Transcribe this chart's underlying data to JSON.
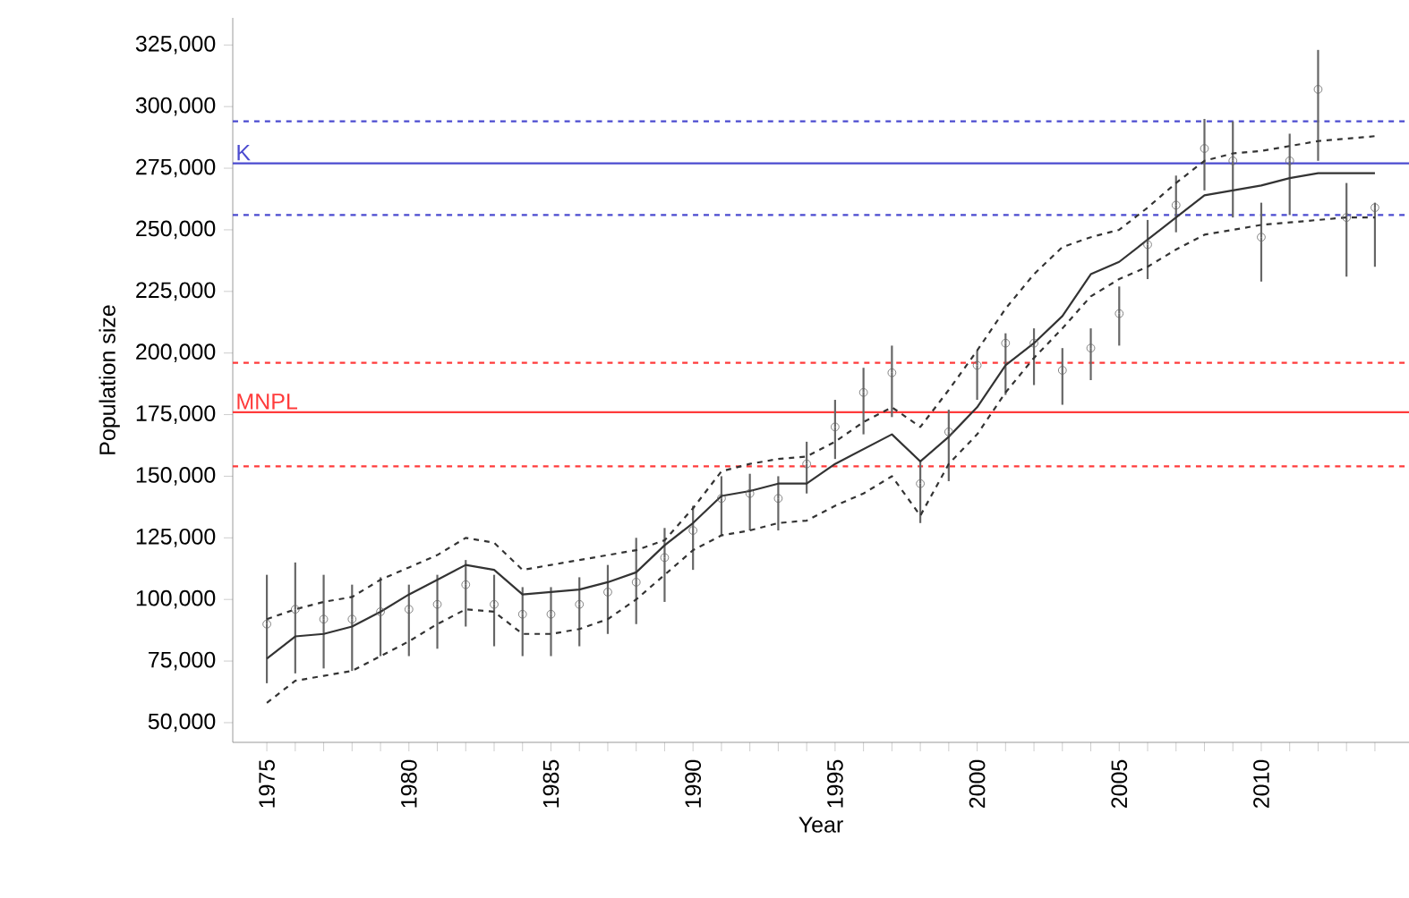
{
  "chart_data": {
    "type": "line",
    "xlabel": "Year",
    "ylabel": "Population size",
    "xlim": [
      1973.8,
      2015.2
    ],
    "ylim": [
      42000,
      336000
    ],
    "xticks": [
      1975,
      {
        "value": 1976,
        "label": null
      },
      {
        "value": 1977,
        "label": null
      },
      {
        "value": 1978,
        "label": null
      },
      {
        "value": 1979,
        "label": null
      },
      1980,
      {
        "value": 1981,
        "label": null
      },
      {
        "value": 1982,
        "label": null
      },
      {
        "value": 1983,
        "label": null
      },
      {
        "value": 1984,
        "label": null
      },
      1985,
      {
        "value": 1986,
        "label": null
      },
      {
        "value": 1987,
        "label": null
      },
      {
        "value": 1988,
        "label": null
      },
      {
        "value": 1989,
        "label": null
      },
      1990,
      {
        "value": 1991,
        "label": null
      },
      {
        "value": 1992,
        "label": null
      },
      {
        "value": 1993,
        "label": null
      },
      {
        "value": 1994,
        "label": null
      },
      1995,
      {
        "value": 1996,
        "label": null
      },
      {
        "value": 1997,
        "label": null
      },
      {
        "value": 1998,
        "label": null
      },
      {
        "value": 1999,
        "label": null
      },
      2000,
      {
        "value": 2001,
        "label": null
      },
      {
        "value": 2002,
        "label": null
      },
      {
        "value": 2003,
        "label": null
      },
      {
        "value": 2004,
        "label": null
      },
      2005,
      {
        "value": 2006,
        "label": null
      },
      {
        "value": 2007,
        "label": null
      },
      {
        "value": 2008,
        "label": null
      },
      {
        "value": 2009,
        "label": null
      },
      2010,
      {
        "value": 2011,
        "label": null
      },
      {
        "value": 2012,
        "label": null
      },
      {
        "value": 2013,
        "label": null
      },
      {
        "value": 2014,
        "label": null
      }
    ],
    "yticks": [
      {
        "value": 50000,
        "label": "50,000"
      },
      {
        "value": 75000,
        "label": "75,000"
      },
      {
        "value": 100000,
        "label": "100,000"
      },
      {
        "value": 125000,
        "label": "125,000"
      },
      {
        "value": 150000,
        "label": "150,000"
      },
      {
        "value": 175000,
        "label": "175,000"
      },
      {
        "value": 200000,
        "label": "200,000"
      },
      {
        "value": 225000,
        "label": "225,000"
      },
      {
        "value": 250000,
        "label": "250,000"
      },
      {
        "value": 275000,
        "label": "275,000"
      },
      {
        "value": 300000,
        "label": "300,000"
      },
      {
        "value": 325000,
        "label": "325,000"
      }
    ],
    "x": [
      1975,
      1976,
      1977,
      1978,
      1979,
      1980,
      1981,
      1982,
      1983,
      1984,
      1985,
      1986,
      1987,
      1988,
      1989,
      1990,
      1991,
      1992,
      1993,
      1994,
      1995,
      1996,
      1997,
      1998,
      1999,
      2000,
      2001,
      2002,
      2003,
      2004,
      2005,
      2006,
      2007,
      2008,
      2009,
      2010,
      2011,
      2012,
      2013,
      2014
    ],
    "grid": false,
    "series": [
      {
        "type": "scatter",
        "marker": "circle",
        "color": "#666666",
        "values": [
          90000,
          96000,
          92000,
          92000,
          95000,
          96000,
          98000,
          106000,
          98000,
          94000,
          94000,
          98000,
          103000,
          107000,
          117000,
          128000,
          141000,
          143000,
          141000,
          155000,
          170000,
          184000,
          192000,
          147000,
          168000,
          195000,
          204000,
          204000,
          193000,
          202000,
          216000,
          244000,
          260000,
          283000,
          278000,
          247000,
          278000,
          307000,
          255000,
          259000
        ],
        "errors": [
          [
            66000,
            110000
          ],
          [
            70000,
            115000
          ],
          [
            72000,
            110000
          ],
          [
            71000,
            106000
          ],
          [
            77000,
            109000
          ],
          [
            77000,
            106000
          ],
          [
            80000,
            110000
          ],
          [
            89000,
            116000
          ],
          [
            81000,
            110000
          ],
          [
            77000,
            105000
          ],
          [
            77000,
            105000
          ],
          [
            81000,
            109000
          ],
          [
            86000,
            114000
          ],
          [
            90000,
            125000
          ],
          [
            99000,
            129000
          ],
          [
            112000,
            138000
          ],
          [
            126000,
            150000
          ],
          [
            128000,
            151000
          ],
          [
            128000,
            150000
          ],
          [
            143000,
            164000
          ],
          [
            157000,
            181000
          ],
          [
            167000,
            194000
          ],
          [
            174000,
            203000
          ],
          [
            131000,
            156000
          ],
          [
            148000,
            177000
          ],
          [
            181000,
            201000
          ],
          [
            183000,
            208000
          ],
          [
            187000,
            210000
          ],
          [
            179000,
            202000
          ],
          [
            189000,
            210000
          ],
          [
            203000,
            227000
          ],
          [
            230000,
            254000
          ],
          [
            249000,
            272000
          ],
          [
            266000,
            295000
          ],
          [
            255000,
            294000
          ],
          [
            229000,
            261000
          ],
          [
            256000,
            289000
          ],
          [
            278000,
            323000
          ],
          [
            231000,
            269000
          ],
          [
            235000,
            261000
          ]
        ]
      },
      {
        "marker": "none",
        "line_style": "solid",
        "color": "#333333",
        "values": [
          76000,
          85000,
          86000,
          89000,
          95000,
          102000,
          108000,
          114000,
          112000,
          102000,
          103000,
          104000,
          107000,
          111000,
          122000,
          131000,
          142000,
          144000,
          147000,
          147000,
          155000,
          161000,
          167000,
          156000,
          166000,
          178000,
          195000,
          204000,
          215000,
          232000,
          237000,
          246000,
          255000,
          264000,
          266000,
          268000,
          271000,
          273000,
          273000,
          273000
        ]
      },
      {
        "marker": "none",
        "line_style": "dashed",
        "color": "#333333",
        "values": [
          92000,
          96000,
          99000,
          101000,
          108000,
          113000,
          118000,
          125000,
          123000,
          112000,
          114000,
          116000,
          118000,
          120000,
          124000,
          137000,
          152000,
          155000,
          157000,
          158000,
          164000,
          172000,
          178000,
          170000,
          185000,
          201000,
          218000,
          232000,
          243000,
          247000,
          250000,
          259000,
          269000,
          278000,
          281000,
          282000,
          284000,
          286000,
          287000,
          288000
        ]
      },
      {
        "marker": "none",
        "line_style": "dashed",
        "color": "#333333",
        "values": [
          58000,
          67000,
          69000,
          71000,
          77000,
          83000,
          90000,
          96000,
          95000,
          86000,
          86000,
          88000,
          92000,
          100000,
          110000,
          120000,
          126000,
          128000,
          131000,
          132000,
          138000,
          143000,
          150000,
          134000,
          155000,
          167000,
          184000,
          198000,
          210000,
          223000,
          230000,
          235000,
          242000,
          248000,
          250000,
          252000,
          253000,
          254000,
          255000,
          255000
        ]
      }
    ],
    "ref_lines": [
      {
        "axis": "y",
        "value": 277000,
        "label": "K",
        "color": "#4b4bd0",
        "line_style": "solid"
      },
      {
        "axis": "y",
        "value": 294000,
        "color": "#4b4bd0",
        "line_style": "dashed"
      },
      {
        "axis": "y",
        "value": 256000,
        "color": "#4b4bd0",
        "line_style": "dashed"
      },
      {
        "axis": "y",
        "value": 176000,
        "label": "MNPL",
        "color": "#ff3b3b",
        "line_style": "solid"
      },
      {
        "axis": "y",
        "value": 196000,
        "color": "#ff3b3b",
        "line_style": "dashed"
      },
      {
        "axis": "y",
        "value": 154000,
        "color": "#ff3b3b",
        "line_style": "dashed"
      }
    ]
  }
}
